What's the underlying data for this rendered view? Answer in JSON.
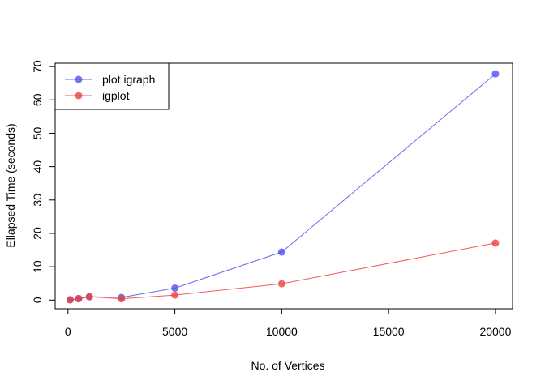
{
  "chart_data": {
    "type": "line",
    "xlabel": "No. of Vertices",
    "ylabel": "Ellapsed Time (seconds)",
    "xlim": [
      -600,
      20800
    ],
    "ylim": [
      -2.6,
      71
    ],
    "x_ticks": [
      0,
      5000,
      10000,
      15000,
      20000
    ],
    "y_ticks": [
      0,
      10,
      20,
      30,
      40,
      50,
      60,
      70
    ],
    "grid": false,
    "legend_position": "top-left",
    "series": [
      {
        "name": "plot.igraph",
        "color": "#5050f0",
        "x": [
          100,
          500,
          1000,
          2500,
          5000,
          10000,
          20000
        ],
        "y": [
          0.1,
          0.4,
          1.0,
          0.8,
          3.6,
          14.4,
          67.8
        ]
      },
      {
        "name": "igplot",
        "color": "#f04040",
        "x": [
          100,
          500,
          1000,
          2500,
          5000,
          10000,
          20000
        ],
        "y": [
          0.1,
          0.5,
          1.0,
          0.4,
          1.5,
          4.9,
          17.1
        ]
      }
    ]
  }
}
